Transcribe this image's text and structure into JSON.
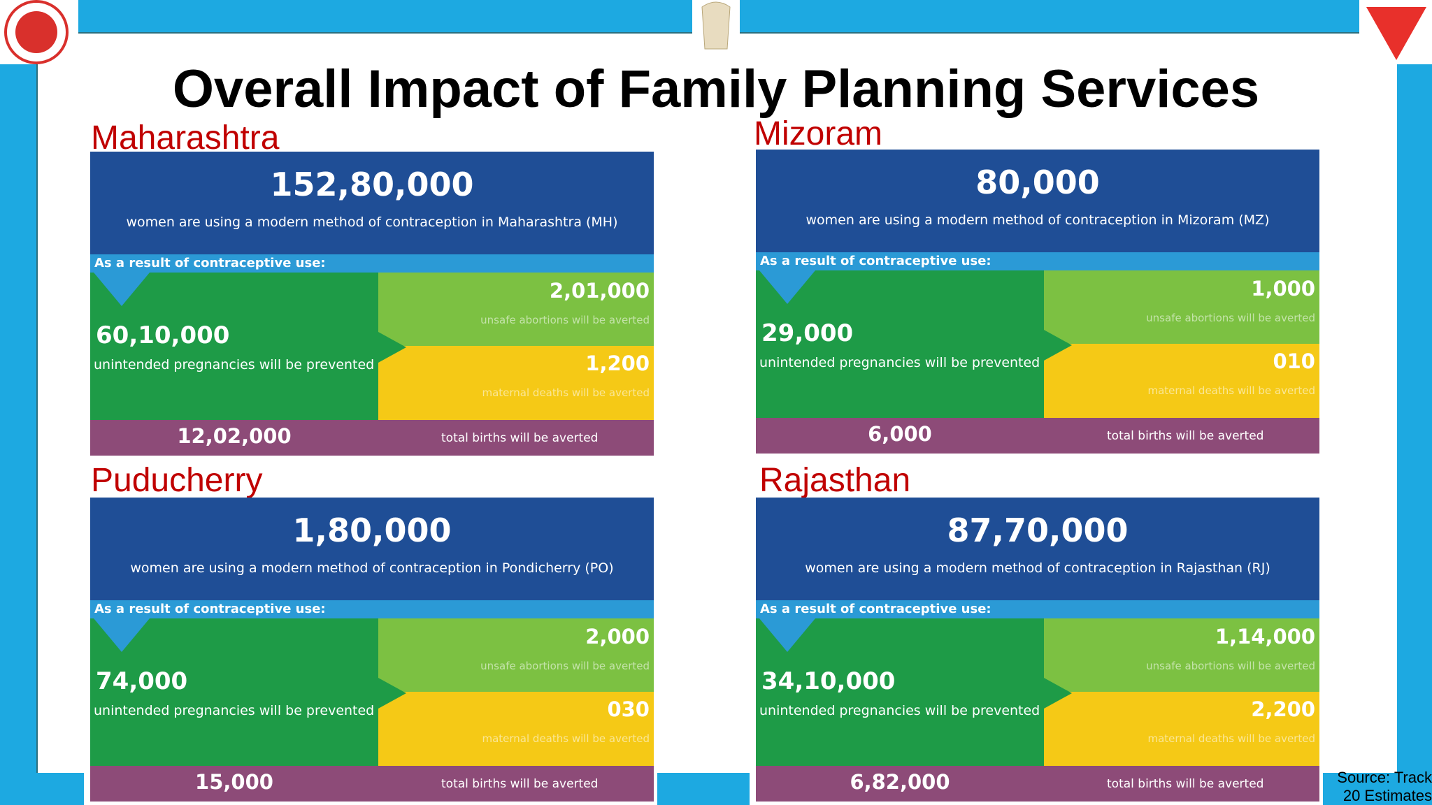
{
  "title": "Overall Impact of Family Planning Services",
  "panels": [
    {
      "state": "Maharashtra",
      "users": "152,80,000",
      "users_text": "women are using a modern method of contraception in Maharashtra (MH)",
      "result_label": "As a result of contraceptive use:",
      "pregnancies": "60,10,000",
      "pregnancies_text": "unintended pregnancies will be prevented",
      "abortions": "2,01,000",
      "abortions_text": "unsafe abortions will be averted",
      "deaths": "1,200",
      "deaths_text": "maternal deaths will be averted",
      "births": "12,02,000",
      "births_text": "total births will be averted"
    },
    {
      "state": "Mizoram",
      "users": "80,000",
      "users_text": "women are using a modern method of contraception in Mizoram (MZ)",
      "result_label": "As a result of contraceptive use:",
      "pregnancies": "29,000",
      "pregnancies_text": "unintended pregnancies will be prevented",
      "abortions": "1,000",
      "abortions_text": "unsafe abortions will be averted",
      "deaths": "010",
      "deaths_text": "maternal deaths will be averted",
      "births": "6,000",
      "births_text": "total births will be averted"
    },
    {
      "state": "Puducherry",
      "users": "1,80,000",
      "users_text": "women are using a modern method of contraception in Pondicherry (PO)",
      "result_label": "As a result of contraceptive use:",
      "pregnancies": "74,000",
      "pregnancies_text": "unintended pregnancies will be prevented",
      "abortions": "2,000",
      "abortions_text": "unsafe abortions will be averted",
      "deaths": "030",
      "deaths_text": "maternal deaths will be averted",
      "births": "15,000",
      "births_text": "total births will be averted"
    },
    {
      "state": "Rajasthan",
      "users": "87,70,000",
      "users_text": "women are using a modern method of contraception in Rajasthan (RJ)",
      "result_label": "As a result of contraceptive use:",
      "pregnancies": "34,10,000",
      "pregnancies_text": "unintended pregnancies will be prevented",
      "abortions": "1,14,000",
      "abortions_text": "unsafe abortions will be averted",
      "deaths": "2,200",
      "deaths_text": "maternal deaths will be averted",
      "births": "6,82,000",
      "births_text": "total births will be averted"
    }
  ],
  "source": "Source: Track 20 Estimates"
}
